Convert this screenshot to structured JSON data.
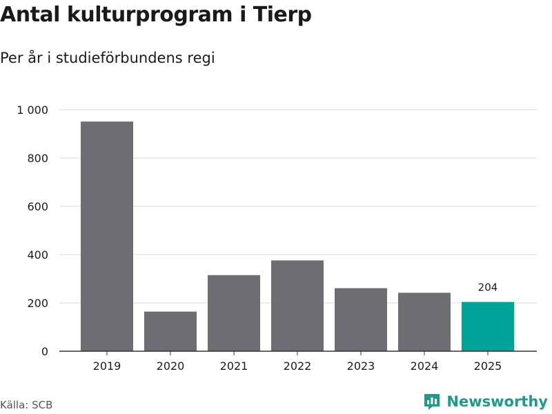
{
  "chart_data": {
    "type": "bar",
    "title": "Antal kulturprogram i Tierp",
    "subtitle": "Per år i studieförbundens regi",
    "categories": [
      "2019",
      "2020",
      "2021",
      "2022",
      "2023",
      "2024",
      "2025"
    ],
    "values": [
      951,
      164,
      315,
      376,
      261,
      242,
      204
    ],
    "ylim": [
      0,
      1000
    ],
    "yticks": [
      0,
      200,
      400,
      600,
      800,
      1000
    ],
    "ytick_labels": [
      "0",
      "200",
      "400",
      "600",
      "800",
      "1 000"
    ],
    "grid": true,
    "highlight": {
      "index": 6,
      "label": "204"
    },
    "colors": {
      "bar": "#6d6d73",
      "highlight": "#00a398",
      "grid": "#d9d9d9",
      "axis": "#333333"
    }
  },
  "source": "Källa: SCB",
  "brand": {
    "name": "Newsworthy",
    "icon": "bar-chart-logo-icon",
    "color": "#1f9a8a"
  }
}
